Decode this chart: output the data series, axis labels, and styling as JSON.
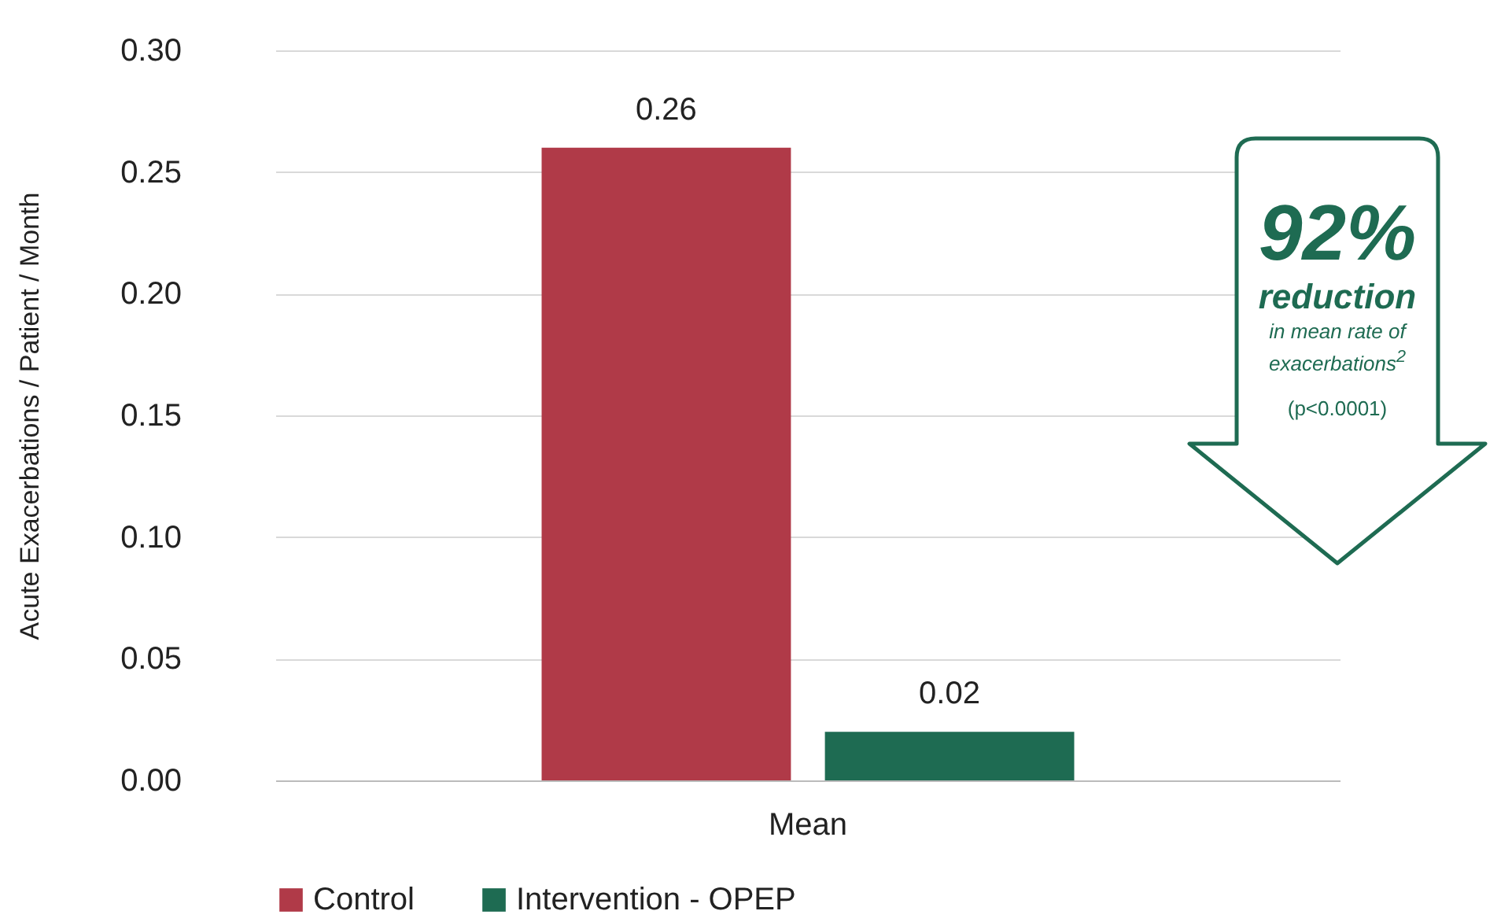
{
  "chart_data": {
    "type": "bar",
    "ylabel": "Acute Exacerbations / Patient / Month",
    "categories": [
      "Mean"
    ],
    "series": [
      {
        "name": "Control",
        "color": "#b03a48",
        "values": [
          0.26
        ]
      },
      {
        "name": "Intervention - OPEP",
        "color": "#1e6b52",
        "values": [
          0.02
        ]
      }
    ],
    "ylim": [
      0,
      0.3
    ],
    "yticks": [
      {
        "value": 0,
        "label": "0.00"
      },
      {
        "value": 0.05,
        "label": "0.05"
      },
      {
        "value": 0.1,
        "label": "0.10"
      },
      {
        "value": 0.15,
        "label": "0.15"
      },
      {
        "value": 0.2,
        "label": "0.20"
      },
      {
        "value": 0.25,
        "label": "0.25"
      },
      {
        "value": 0.3,
        "label": "0.30"
      }
    ],
    "grid": "y",
    "legend": "bottom",
    "data_labels": true,
    "annotations": [
      "92%",
      "reduction",
      "in mean rate of exacerbations$^{2}$",
      "(p<0.0001)"
    ]
  }
}
